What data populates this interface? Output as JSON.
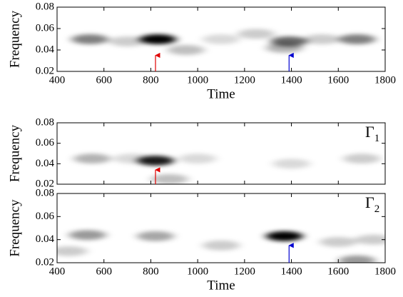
{
  "chart_data": [
    {
      "type": "spectrogram",
      "xlabel": "Time",
      "ylabel": "Frequency",
      "xlim": [
        400,
        1800
      ],
      "ylim": [
        0.02,
        0.08
      ],
      "xticks": [
        400,
        600,
        800,
        1000,
        1200,
        1400,
        1600,
        1800
      ],
      "yticks": [
        0.02,
        0.04,
        0.06,
        0.08
      ],
      "xtick_labels": true,
      "peaks": {
        "x": [
          540,
          830,
          1390,
          1680,
          700,
          950,
          1100,
          1250,
          1530,
          1370
        ],
        "y": [
          0.05,
          0.05,
          0.048,
          0.05,
          0.048,
          0.04,
          0.05,
          0.055,
          0.05,
          0.042
        ],
        "intensity": [
          0.5,
          1.0,
          0.6,
          0.5,
          0.2,
          0.25,
          0.15,
          0.2,
          0.2,
          0.3
        ]
      },
      "arrows": [
        {
          "x": 820,
          "y": [
            0.02,
            0.035
          ],
          "color": "#e00000"
        },
        {
          "x": 1390,
          "y": [
            0.02,
            0.035
          ],
          "color": "#0000d0"
        }
      ]
    },
    {
      "type": "spectrogram",
      "ylabel": "Frequency",
      "label": "Γ",
      "label_sub": "1",
      "xlim": [
        400,
        1800
      ],
      "ylim": [
        0.02,
        0.08
      ],
      "xticks": [
        400,
        600,
        800,
        1000,
        1200,
        1400,
        1600,
        1800
      ],
      "yticks": [
        0.02,
        0.04,
        0.06,
        0.08
      ],
      "xtick_labels": false,
      "peaks": {
        "x": [
          820,
          550,
          1000,
          1400,
          1700,
          880,
          720
        ],
        "y": [
          0.043,
          0.045,
          0.045,
          0.04,
          0.045,
          0.025,
          0.045
        ],
        "intensity": [
          0.9,
          0.3,
          0.15,
          0.15,
          0.2,
          0.25,
          0.15
        ]
      },
      "arrows": [
        {
          "x": 820,
          "y": [
            0.02,
            0.034
          ],
          "color": "#e00000"
        }
      ]
    },
    {
      "type": "spectrogram",
      "xlabel": "Time",
      "ylabel": "Frequency",
      "label": "Γ",
      "label_sub": "2",
      "xlim": [
        400,
        1800
      ],
      "ylim": [
        0.02,
        0.08
      ],
      "xticks": [
        400,
        600,
        800,
        1000,
        1200,
        1400,
        1600,
        1800
      ],
      "yticks": [
        0.02,
        0.04,
        0.06,
        0.08
      ],
      "xtick_labels": true,
      "peaks": {
        "x": [
          1370,
          530,
          820,
          1100,
          1600,
          1680,
          450,
          1750
        ],
        "y": [
          0.043,
          0.044,
          0.043,
          0.035,
          0.038,
          0.022,
          0.03,
          0.04
        ],
        "intensity": [
          1.0,
          0.4,
          0.35,
          0.2,
          0.2,
          0.4,
          0.2,
          0.2
        ]
      },
      "arrows": [
        {
          "x": 1390,
          "y": [
            0.02,
            0.035
          ],
          "color": "#0000d0"
        }
      ]
    }
  ]
}
